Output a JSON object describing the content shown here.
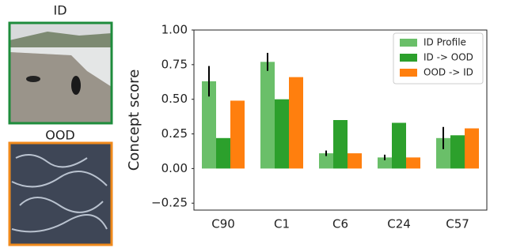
{
  "images": [
    {
      "label": "ID"
    },
    {
      "label": "OOD"
    }
  ],
  "chart_data": {
    "type": "bar",
    "ylabel": "Concept score",
    "categories": [
      "C90",
      "C1",
      "C6",
      "C24",
      "C57"
    ],
    "series": [
      {
        "name": "ID Profile",
        "color": "#6abf69",
        "values": [
          0.63,
          0.77,
          0.11,
          0.08,
          0.22
        ],
        "errors": [
          0.11,
          0.065,
          0.02,
          0.02,
          0.08
        ]
      },
      {
        "name": "ID -> OOD",
        "color": "#2ca02c",
        "values": [
          0.22,
          0.5,
          0.35,
          0.33,
          0.24
        ]
      },
      {
        "name": "OOD -> ID",
        "color": "#ff7f0e",
        "values": [
          0.49,
          0.66,
          0.11,
          0.08,
          0.29
        ]
      }
    ],
    "ylim": [
      -0.3,
      1.0
    ],
    "yticks": [
      {
        "value": -0.25,
        "label": "−0.25"
      },
      {
        "value": 0,
        "label": "0.00"
      },
      {
        "value": 0.25,
        "label": "0.25"
      },
      {
        "value": 0.5,
        "label": "0.50"
      },
      {
        "value": 0.75,
        "label": "0.75"
      },
      {
        "value": 1.0,
        "label": "1.00"
      }
    ],
    "grid": false,
    "legend": "upper right"
  }
}
